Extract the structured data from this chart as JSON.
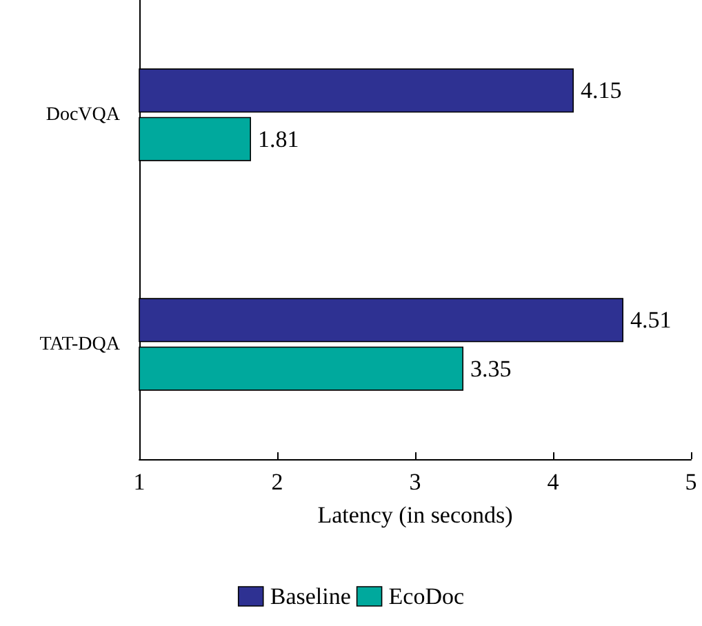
{
  "chart_data": {
    "type": "bar",
    "orientation": "horizontal",
    "xlabel": "Latency (in seconds)",
    "categories": [
      "DocVQA",
      "TAT-DQA"
    ],
    "series": [
      {
        "name": "Baseline",
        "color": "#2e3192",
        "values": [
          4.15,
          4.51
        ]
      },
      {
        "name": "EcoDoc",
        "color": "#00a99d",
        "values": [
          1.81,
          3.35
        ]
      }
    ],
    "xlim": [
      1,
      5
    ],
    "xticks": [
      1,
      2,
      3,
      4,
      5
    ],
    "data_labels": true,
    "legend": "bottom",
    "grid": false
  }
}
